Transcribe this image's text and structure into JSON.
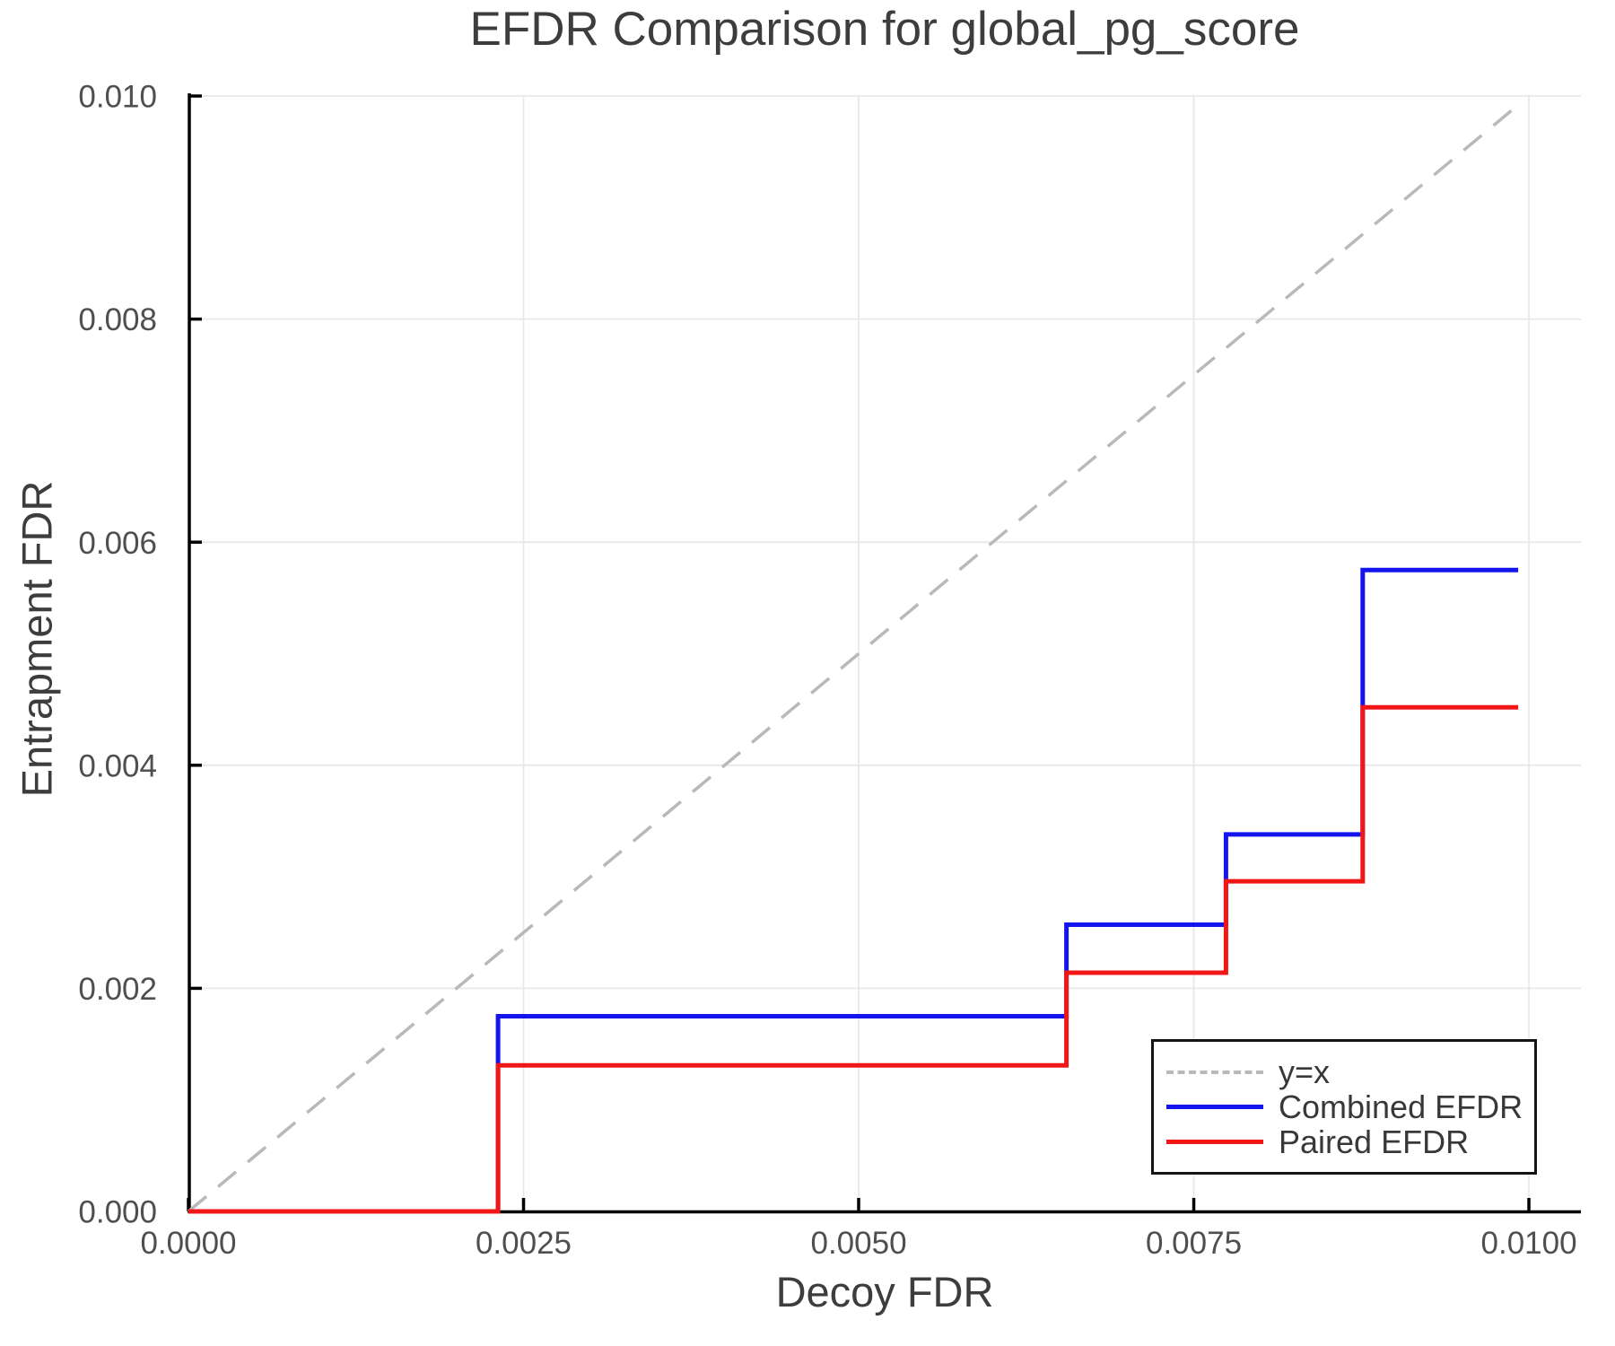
{
  "figure": {
    "title": "EFDR Comparison for global_pg_score",
    "xlabel": "Decoy FDR",
    "ylabel": "Entrapment FDR"
  },
  "chart_data": {
    "type": "line",
    "title": "EFDR Comparison for global_pg_score",
    "xlabel": "Decoy FDR",
    "ylabel": "Entrapment FDR",
    "grid": true,
    "legend_position": "lower right",
    "xlim": [
      0,
      0.010388
    ],
    "ylim": [
      0,
      0.01
    ],
    "x_ticks": {
      "values": [
        0.0,
        0.0025,
        0.005,
        0.0075,
        0.01
      ],
      "labels": [
        "0.0000",
        "0.0025",
        "0.0050",
        "0.0075",
        "0.0100"
      ]
    },
    "y_ticks": {
      "values": [
        0.0,
        0.002,
        0.004,
        0.006,
        0.008,
        0.01
      ],
      "labels": [
        "0.000",
        "0.002",
        "0.004",
        "0.006",
        "0.008",
        "0.010"
      ]
    },
    "series": [
      {
        "name": "y=x",
        "style": "dashed",
        "color": "#b9b9b9",
        "width": 3.5,
        "dash": "26 17",
        "points": [
          [
            0,
            0
          ],
          [
            0.00995,
            0.00995
          ]
        ]
      },
      {
        "name": "Combined EFDR",
        "style": "step",
        "color": "#1414ee",
        "width": 5,
        "step_x": [
          0,
          0.00231,
          0.00655,
          0.00774,
          0.00876,
          0.00992
        ],
        "step_y": [
          0,
          0.00175,
          0.00257,
          0.00338,
          0.00575
        ]
      },
      {
        "name": "Paired EFDR",
        "style": "step",
        "color": "#f21717",
        "width": 5,
        "step_x": [
          0,
          0.00231,
          0.00655,
          0.00774,
          0.00876,
          0.00992
        ],
        "step_y": [
          0,
          0.00131,
          0.00214,
          0.00296,
          0.00452
        ]
      }
    ]
  }
}
